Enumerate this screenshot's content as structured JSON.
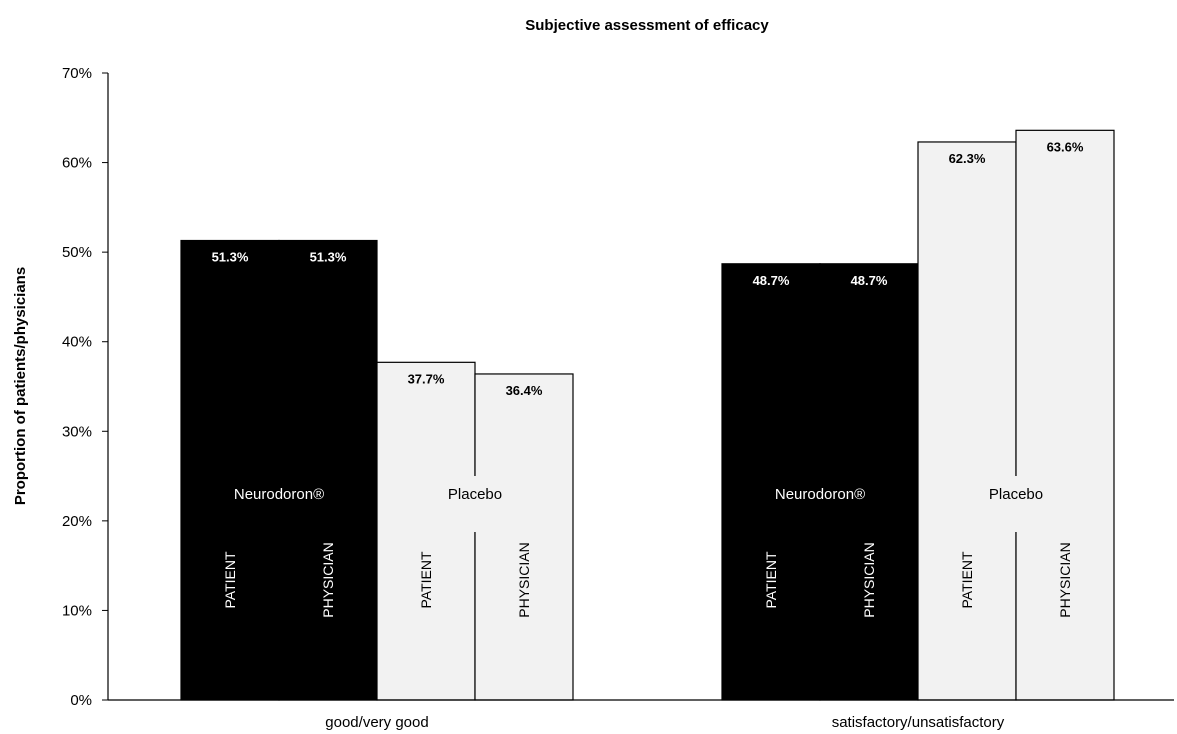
{
  "chart_data": {
    "type": "bar",
    "title": "Subjective assessment of efficacy",
    "xlabel": "",
    "ylabel": "Proportion of patients/physicians",
    "ylim": [
      0,
      70
    ],
    "yticks": [
      "0%",
      "10%",
      "20%",
      "30%",
      "40%",
      "50%",
      "60%",
      "70%"
    ],
    "grid": false,
    "categories": [
      "good/very good",
      "satisfactory/unsatisfactory"
    ],
    "groups": [
      "Neurodoron®",
      "Placebo"
    ],
    "bar_labels": [
      "PATIENT",
      "PHYSICIAN"
    ],
    "series": [
      {
        "group": "Neurodoron®",
        "rater": "PATIENT",
        "color": "#000000",
        "values": [
          51.3,
          48.7
        ],
        "labels": [
          "51.3%",
          "48.7%"
        ]
      },
      {
        "group": "Neurodoron®",
        "rater": "PHYSICIAN",
        "color": "#000000",
        "values": [
          51.3,
          48.7
        ],
        "labels": [
          "51.3%",
          "48.7%"
        ]
      },
      {
        "group": "Placebo",
        "rater": "PATIENT",
        "color": "#f2f2f2",
        "values": [
          37.7,
          62.3
        ],
        "labels": [
          "37.7%",
          "62.3%"
        ]
      },
      {
        "group": "Placebo",
        "rater": "PHYSICIAN",
        "color": "#f2f2f2",
        "values": [
          36.4,
          63.6
        ],
        "labels": [
          "36.4%",
          "63.6%"
        ]
      }
    ]
  }
}
